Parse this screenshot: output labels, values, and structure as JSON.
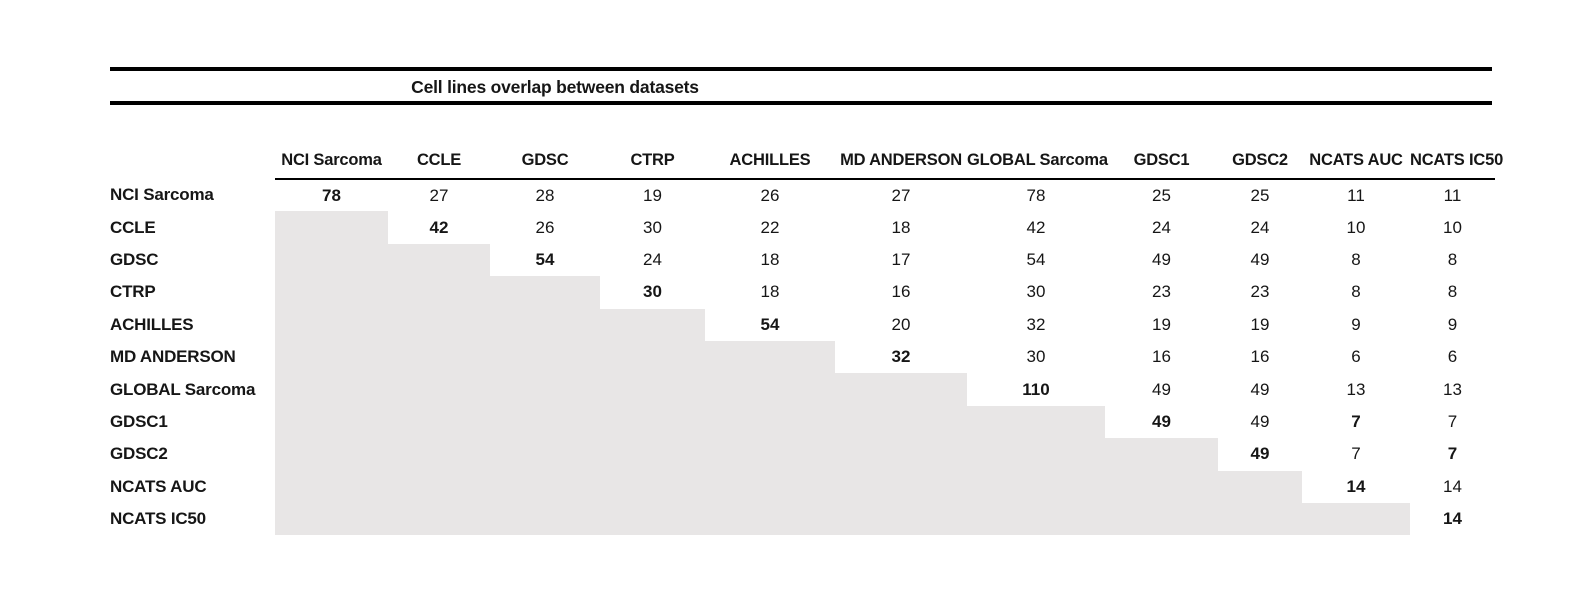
{
  "title": "Cell lines overlap between datasets",
  "colors": {
    "shade": "#e8e6e6",
    "rule": "#000000",
    "text": "#161616"
  },
  "table": {
    "columns": [
      "NCI Sarcoma",
      "CCLE",
      "GDSC",
      "CTRP",
      "ACHILLES",
      "MD ANDERSON",
      "GLOBAL Sarcoma",
      "GDSC1",
      "GDSC2",
      "NCATS AUC",
      "NCATS IC50"
    ],
    "rows": [
      {
        "label": "NCI Sarcoma",
        "cells": [
          {
            "t": "78",
            "bold": true
          },
          {
            "t": "27"
          },
          {
            "t": "28"
          },
          {
            "t": "19"
          },
          {
            "t": "26"
          },
          {
            "t": "27"
          },
          {
            "t": "78"
          },
          {
            "t": "25"
          },
          {
            "t": "25"
          },
          {
            "t": "11"
          },
          {
            "t": "11"
          }
        ]
      },
      {
        "label": "CCLE",
        "cells": [
          {
            "t": "",
            "shaded": true
          },
          {
            "t": "42",
            "bold": true
          },
          {
            "t": "26"
          },
          {
            "t": "30"
          },
          {
            "t": "22"
          },
          {
            "t": "18"
          },
          {
            "t": "42"
          },
          {
            "t": "24"
          },
          {
            "t": "24"
          },
          {
            "t": "10"
          },
          {
            "t": "10"
          }
        ]
      },
      {
        "label": "GDSC",
        "cells": [
          {
            "t": "",
            "shaded": true
          },
          {
            "t": "",
            "shaded": true
          },
          {
            "t": "54",
            "bold": true
          },
          {
            "t": "24"
          },
          {
            "t": "18"
          },
          {
            "t": "17"
          },
          {
            "t": "54"
          },
          {
            "t": "49"
          },
          {
            "t": "49"
          },
          {
            "t": "8"
          },
          {
            "t": "8"
          }
        ]
      },
      {
        "label": "CTRP",
        "cells": [
          {
            "t": "",
            "shaded": true
          },
          {
            "t": "",
            "shaded": true
          },
          {
            "t": "",
            "shaded": true
          },
          {
            "t": "30",
            "bold": true
          },
          {
            "t": "18"
          },
          {
            "t": "16"
          },
          {
            "t": "30"
          },
          {
            "t": "23"
          },
          {
            "t": "23"
          },
          {
            "t": "8"
          },
          {
            "t": "8"
          }
        ]
      },
      {
        "label": "ACHILLES",
        "cells": [
          {
            "t": "",
            "shaded": true
          },
          {
            "t": "",
            "shaded": true
          },
          {
            "t": "",
            "shaded": true
          },
          {
            "t": "",
            "shaded": true
          },
          {
            "t": "54",
            "bold": true
          },
          {
            "t": "20"
          },
          {
            "t": "32"
          },
          {
            "t": "19"
          },
          {
            "t": "19"
          },
          {
            "t": "9"
          },
          {
            "t": "9"
          }
        ]
      },
      {
        "label": "MD ANDERSON",
        "cells": [
          {
            "t": "",
            "shaded": true
          },
          {
            "t": "",
            "shaded": true
          },
          {
            "t": "",
            "shaded": true
          },
          {
            "t": "",
            "shaded": true
          },
          {
            "t": "",
            "shaded": true
          },
          {
            "t": "32",
            "bold": true
          },
          {
            "t": "30"
          },
          {
            "t": "16"
          },
          {
            "t": "16"
          },
          {
            "t": "6"
          },
          {
            "t": "6"
          }
        ]
      },
      {
        "label": "GLOBAL Sarcoma",
        "cells": [
          {
            "t": "",
            "shaded": true
          },
          {
            "t": "",
            "shaded": true
          },
          {
            "t": "",
            "shaded": true
          },
          {
            "t": "",
            "shaded": true
          },
          {
            "t": "",
            "shaded": true
          },
          {
            "t": "",
            "shaded": true
          },
          {
            "t": "110",
            "bold": true
          },
          {
            "t": "49"
          },
          {
            "t": "49"
          },
          {
            "t": "13"
          },
          {
            "t": "13"
          }
        ]
      },
      {
        "label": "GDSC1",
        "cells": [
          {
            "t": "",
            "shaded": true
          },
          {
            "t": "",
            "shaded": true
          },
          {
            "t": "",
            "shaded": true
          },
          {
            "t": "",
            "shaded": true
          },
          {
            "t": "",
            "shaded": true
          },
          {
            "t": "",
            "shaded": true
          },
          {
            "t": "",
            "shaded": true
          },
          {
            "t": "49",
            "bold": true
          },
          {
            "t": "49"
          },
          {
            "t": "7",
            "bold": true
          },
          {
            "t": "7"
          }
        ]
      },
      {
        "label": "GDSC2",
        "cells": [
          {
            "t": "",
            "shaded": true
          },
          {
            "t": "",
            "shaded": true
          },
          {
            "t": "",
            "shaded": true
          },
          {
            "t": "",
            "shaded": true
          },
          {
            "t": "",
            "shaded": true
          },
          {
            "t": "",
            "shaded": true
          },
          {
            "t": "",
            "shaded": true
          },
          {
            "t": "",
            "shaded": true
          },
          {
            "t": "49",
            "bold": true
          },
          {
            "t": "7"
          },
          {
            "t": "7",
            "bold": true
          }
        ]
      },
      {
        "label": "NCATS AUC",
        "cells": [
          {
            "t": "",
            "shaded": true
          },
          {
            "t": "",
            "shaded": true
          },
          {
            "t": "",
            "shaded": true
          },
          {
            "t": "",
            "shaded": true
          },
          {
            "t": "",
            "shaded": true
          },
          {
            "t": "",
            "shaded": true
          },
          {
            "t": "",
            "shaded": true
          },
          {
            "t": "",
            "shaded": true
          },
          {
            "t": "",
            "shaded": true
          },
          {
            "t": "14",
            "bold": true
          },
          {
            "t": "14"
          }
        ]
      },
      {
        "label": "NCATS IC50",
        "cells": [
          {
            "t": "",
            "shaded": true
          },
          {
            "t": "",
            "shaded": true
          },
          {
            "t": "",
            "shaded": true
          },
          {
            "t": "",
            "shaded": true
          },
          {
            "t": "",
            "shaded": true
          },
          {
            "t": "",
            "shaded": true
          },
          {
            "t": "",
            "shaded": true
          },
          {
            "t": "",
            "shaded": true
          },
          {
            "t": "",
            "shaded": true
          },
          {
            "t": "",
            "shaded": true
          },
          {
            "t": "14",
            "bold": true
          }
        ]
      }
    ]
  }
}
